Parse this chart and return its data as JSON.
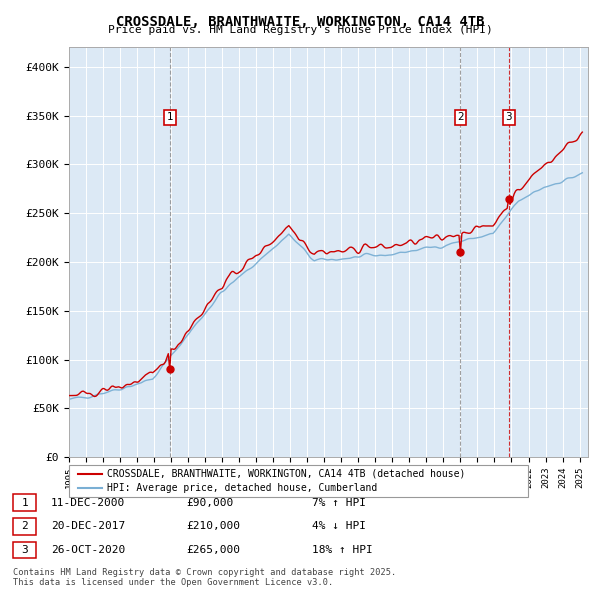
{
  "title": "CROSSDALE, BRANTHWAITE, WORKINGTON, CA14 4TB",
  "subtitle": "Price paid vs. HM Land Registry's House Price Index (HPI)",
  "legend_label_red": "CROSSDALE, BRANTHWAITE, WORKINGTON, CA14 4TB (detached house)",
  "legend_label_blue": "HPI: Average price, detached house, Cumberland",
  "sale_1": {
    "date": "2000-12-11",
    "price": 90000,
    "label": "1"
  },
  "sale_2": {
    "date": "2017-12-20",
    "price": 210000,
    "label": "2"
  },
  "sale_3": {
    "date": "2020-10-26",
    "price": 265000,
    "label": "3"
  },
  "table_rows": [
    [
      "1",
      "11-DEC-2000",
      "£90,000",
      "7% ↑ HPI"
    ],
    [
      "2",
      "20-DEC-2017",
      "£210,000",
      "4% ↓ HPI"
    ],
    [
      "3",
      "26-OCT-2020",
      "£265,000",
      "18% ↑ HPI"
    ]
  ],
  "ylim": [
    0,
    420000
  ],
  "yticks": [
    0,
    50000,
    100000,
    150000,
    200000,
    250000,
    300000,
    350000,
    400000
  ],
  "ytick_labels": [
    "£0",
    "£50K",
    "£100K",
    "£150K",
    "£200K",
    "£250K",
    "£300K",
    "£350K",
    "£400K"
  ],
  "background_color": "#dce9f5",
  "grid_color": "#ffffff",
  "red_line_color": "#cc0000",
  "blue_line_color": "#7aafd4",
  "dot_color": "#cc0000",
  "note_line1": "Contains HM Land Registry data © Crown copyright and database right 2025.",
  "note_line2": "This data is licensed under the Open Government Licence v3.0."
}
